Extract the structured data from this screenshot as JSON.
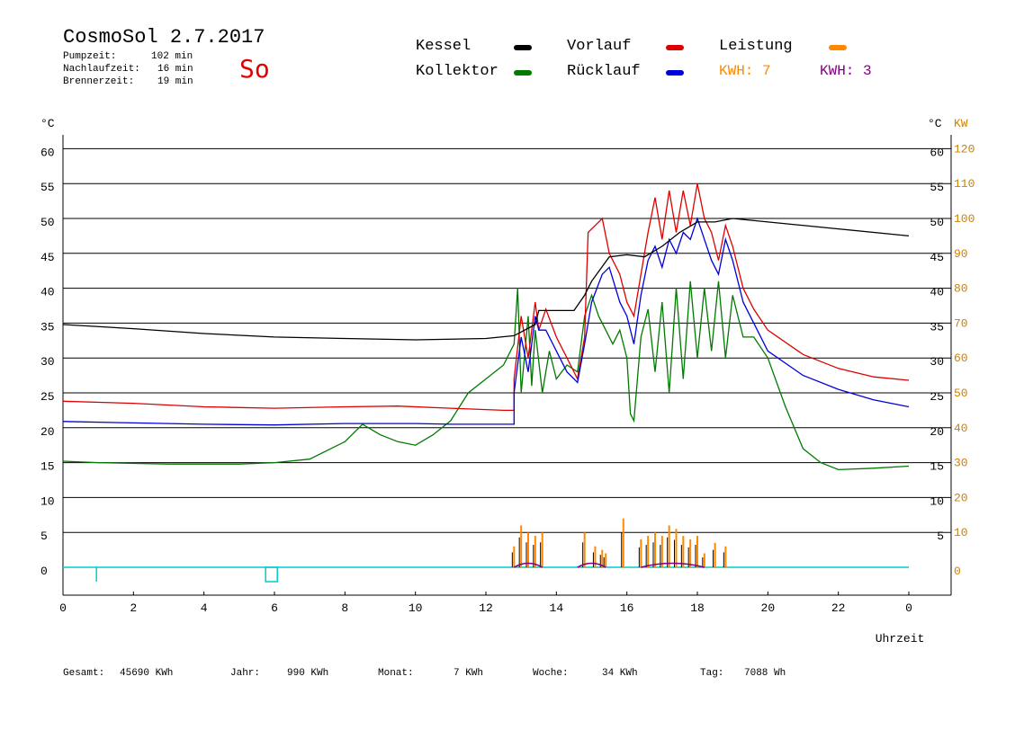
{
  "header": {
    "title": "CosmoSol 2.7.2017",
    "day": "So",
    "info": [
      {
        "label": "Pumpzeit:",
        "value": "102 min"
      },
      {
        "label": "Nachlaufzeit:",
        "value": "16 min"
      },
      {
        "label": "Brennerzeit:",
        "value": "19 min"
      }
    ]
  },
  "legend": {
    "kessel": "Kessel",
    "kollektor": "Kollektor",
    "vorlauf": "Vorlauf",
    "ruecklauf": "Rücklauf",
    "leistung": "Leistung",
    "kwh_orange": "KWH: 7",
    "kwh_purple": "KWH: 3"
  },
  "colors": {
    "kessel": "#000000",
    "kollektor": "#007a00",
    "vorlauf": "#dd0000",
    "ruecklauf": "#0000dd",
    "leistung": "#ff8800",
    "purple": "#800080",
    "cyan": "#00cccc",
    "axis_right2": "#d08000"
  },
  "footer": [
    {
      "label": "Gesamt:",
      "value": "45690 KWh"
    },
    {
      "label": "Jahr:",
      "value": "990 KWh"
    },
    {
      "label": "Monat:",
      "value": "7 KWh"
    },
    {
      "label": "Woche:",
      "value": "34 KWh"
    },
    {
      "label": "Tag:",
      "value": "7088 Wh"
    }
  ],
  "chart_data": {
    "type": "line",
    "xlabel": "Uhrzeit",
    "ylabel_left": "°C",
    "ylabel_right": "°C",
    "ylabel_right2": "KW",
    "xlim": [
      0,
      24
    ],
    "ylim": [
      0,
      60
    ],
    "y2lim": [
      0,
      120
    ],
    "x_ticks": [
      "0",
      "2",
      "4",
      "6",
      "8",
      "10",
      "12",
      "14",
      "16",
      "18",
      "20",
      "22",
      "0"
    ],
    "y_ticks": [
      0,
      5,
      10,
      15,
      20,
      25,
      30,
      35,
      40,
      45,
      50,
      55,
      60
    ],
    "y2_ticks": [
      0,
      10,
      20,
      30,
      40,
      50,
      60,
      70,
      80,
      90,
      100,
      110,
      120
    ],
    "grid": "horizontal",
    "series": [
      {
        "name": "Kessel",
        "color": "#000000",
        "points": [
          [
            0,
            34.8
          ],
          [
            2,
            34.2
          ],
          [
            4,
            33.5
          ],
          [
            6,
            33.0
          ],
          [
            8,
            32.8
          ],
          [
            10,
            32.6
          ],
          [
            12,
            32.8
          ],
          [
            12.8,
            33.2
          ],
          [
            13.4,
            34.8
          ],
          [
            13.5,
            36.8
          ],
          [
            14.5,
            36.8
          ],
          [
            14.8,
            39
          ],
          [
            15.0,
            41
          ],
          [
            15.5,
            44.5
          ],
          [
            16.0,
            44.8
          ],
          [
            16.5,
            44.5
          ],
          [
            17.0,
            46
          ],
          [
            17.5,
            48
          ],
          [
            18.0,
            49.5
          ],
          [
            18.5,
            49.5
          ],
          [
            19.0,
            50
          ],
          [
            20,
            49.5
          ],
          [
            22,
            48.5
          ],
          [
            24,
            47.5
          ]
        ]
      },
      {
        "name": "Vorlauf",
        "color": "#dd0000",
        "points": [
          [
            0,
            23.8
          ],
          [
            2,
            23.5
          ],
          [
            4,
            23.0
          ],
          [
            6,
            22.8
          ],
          [
            8,
            23.0
          ],
          [
            9.5,
            23.1
          ],
          [
            11,
            22.8
          ],
          [
            12.5,
            22.5
          ],
          [
            12.8,
            22.5
          ],
          [
            12.8,
            27
          ],
          [
            13.0,
            36
          ],
          [
            13.2,
            30
          ],
          [
            13.4,
            38
          ],
          [
            13.5,
            34
          ],
          [
            13.7,
            37
          ],
          [
            14.0,
            33
          ],
          [
            14.3,
            30
          ],
          [
            14.6,
            27
          ],
          [
            14.8,
            33
          ],
          [
            14.9,
            48
          ],
          [
            15.1,
            49
          ],
          [
            15.3,
            50
          ],
          [
            15.5,
            45
          ],
          [
            15.8,
            42
          ],
          [
            16.0,
            38
          ],
          [
            16.2,
            36
          ],
          [
            16.4,
            42
          ],
          [
            16.6,
            48
          ],
          [
            16.8,
            53
          ],
          [
            17.0,
            47
          ],
          [
            17.2,
            54
          ],
          [
            17.4,
            48
          ],
          [
            17.6,
            54
          ],
          [
            17.8,
            49
          ],
          [
            18.0,
            55
          ],
          [
            18.2,
            50
          ],
          [
            18.4,
            48
          ],
          [
            18.6,
            44
          ],
          [
            18.8,
            49
          ],
          [
            19.0,
            46
          ],
          [
            19.3,
            40
          ],
          [
            19.6,
            37
          ],
          [
            20.0,
            34
          ],
          [
            21,
            30.5
          ],
          [
            22,
            28.5
          ],
          [
            23,
            27.3
          ],
          [
            24,
            26.8
          ]
        ]
      },
      {
        "name": "Rücklauf",
        "color": "#0000dd",
        "points": [
          [
            0,
            20.9
          ],
          [
            2,
            20.7
          ],
          [
            4,
            20.5
          ],
          [
            6,
            20.4
          ],
          [
            8,
            20.6
          ],
          [
            10,
            20.6
          ],
          [
            11,
            20.5
          ],
          [
            12.8,
            20.5
          ],
          [
            12.8,
            25
          ],
          [
            13.0,
            33
          ],
          [
            13.2,
            28
          ],
          [
            13.4,
            36
          ],
          [
            13.5,
            34
          ],
          [
            13.7,
            34
          ],
          [
            14.0,
            31
          ],
          [
            14.3,
            28
          ],
          [
            14.6,
            26.5
          ],
          [
            14.8,
            32
          ],
          [
            15.0,
            38
          ],
          [
            15.3,
            42
          ],
          [
            15.5,
            43
          ],
          [
            15.8,
            38
          ],
          [
            16.0,
            36
          ],
          [
            16.2,
            32
          ],
          [
            16.4,
            39
          ],
          [
            16.6,
            44
          ],
          [
            16.8,
            46
          ],
          [
            17.0,
            43
          ],
          [
            17.2,
            47
          ],
          [
            17.4,
            45
          ],
          [
            17.6,
            48
          ],
          [
            17.8,
            47
          ],
          [
            18.0,
            50
          ],
          [
            18.2,
            47
          ],
          [
            18.4,
            44
          ],
          [
            18.6,
            42
          ],
          [
            18.8,
            47
          ],
          [
            19.0,
            44
          ],
          [
            19.3,
            38
          ],
          [
            19.6,
            35
          ],
          [
            20.0,
            31
          ],
          [
            21,
            27.5
          ],
          [
            22,
            25.5
          ],
          [
            23,
            24
          ],
          [
            24,
            23
          ]
        ]
      },
      {
        "name": "Kollektor",
        "color": "#007a00",
        "points": [
          [
            0,
            15.2
          ],
          [
            1,
            15.0
          ],
          [
            3,
            14.8
          ],
          [
            5,
            14.8
          ],
          [
            6,
            15.0
          ],
          [
            7,
            15.5
          ],
          [
            8,
            18
          ],
          [
            8.5,
            20.5
          ],
          [
            9,
            19
          ],
          [
            9.5,
            18
          ],
          [
            10,
            17.5
          ],
          [
            10.5,
            19
          ],
          [
            11,
            21
          ],
          [
            11.5,
            25
          ],
          [
            12,
            27
          ],
          [
            12.5,
            29
          ],
          [
            12.8,
            32
          ],
          [
            12.9,
            40
          ],
          [
            13.0,
            25
          ],
          [
            13.2,
            36
          ],
          [
            13.3,
            26
          ],
          [
            13.4,
            34
          ],
          [
            13.6,
            25
          ],
          [
            13.8,
            31
          ],
          [
            14.0,
            27
          ],
          [
            14.3,
            29
          ],
          [
            14.6,
            28
          ],
          [
            14.8,
            36
          ],
          [
            15.0,
            39
          ],
          [
            15.2,
            36
          ],
          [
            15.4,
            34
          ],
          [
            15.6,
            32
          ],
          [
            15.8,
            34
          ],
          [
            16.0,
            30
          ],
          [
            16.1,
            22
          ],
          [
            16.2,
            21
          ],
          [
            16.4,
            33
          ],
          [
            16.6,
            37
          ],
          [
            16.8,
            28
          ],
          [
            17.0,
            38
          ],
          [
            17.2,
            25
          ],
          [
            17.4,
            40
          ],
          [
            17.6,
            27
          ],
          [
            17.8,
            41
          ],
          [
            18.0,
            30
          ],
          [
            18.2,
            40
          ],
          [
            18.4,
            31
          ],
          [
            18.6,
            41
          ],
          [
            18.8,
            30
          ],
          [
            19.0,
            39
          ],
          [
            19.3,
            33
          ],
          [
            19.6,
            33
          ],
          [
            20.0,
            30
          ],
          [
            20.5,
            23
          ],
          [
            21,
            17
          ],
          [
            21.5,
            15
          ],
          [
            22,
            14
          ],
          [
            23,
            14.2
          ],
          [
            24,
            14.5
          ]
        ]
      }
    ],
    "power_bars": [
      {
        "x": 12.8,
        "kw": 6
      },
      {
        "x": 13.0,
        "kw": 12
      },
      {
        "x": 13.2,
        "kw": 10
      },
      {
        "x": 13.4,
        "kw": 9
      },
      {
        "x": 13.6,
        "kw": 10
      },
      {
        "x": 14.8,
        "kw": 10
      },
      {
        "x": 15.1,
        "kw": 6
      },
      {
        "x": 15.3,
        "kw": 5
      },
      {
        "x": 15.4,
        "kw": 4
      },
      {
        "x": 15.9,
        "kw": 14
      },
      {
        "x": 16.4,
        "kw": 8
      },
      {
        "x": 16.6,
        "kw": 9
      },
      {
        "x": 16.8,
        "kw": 10
      },
      {
        "x": 17.0,
        "kw": 9
      },
      {
        "x": 17.2,
        "kw": 12
      },
      {
        "x": 17.4,
        "kw": 11
      },
      {
        "x": 17.6,
        "kw": 9
      },
      {
        "x": 17.8,
        "kw": 8
      },
      {
        "x": 18.0,
        "kw": 9
      },
      {
        "x": 18.2,
        "kw": 4
      },
      {
        "x": 18.5,
        "kw": 7
      },
      {
        "x": 18.8,
        "kw": 6
      }
    ]
  }
}
